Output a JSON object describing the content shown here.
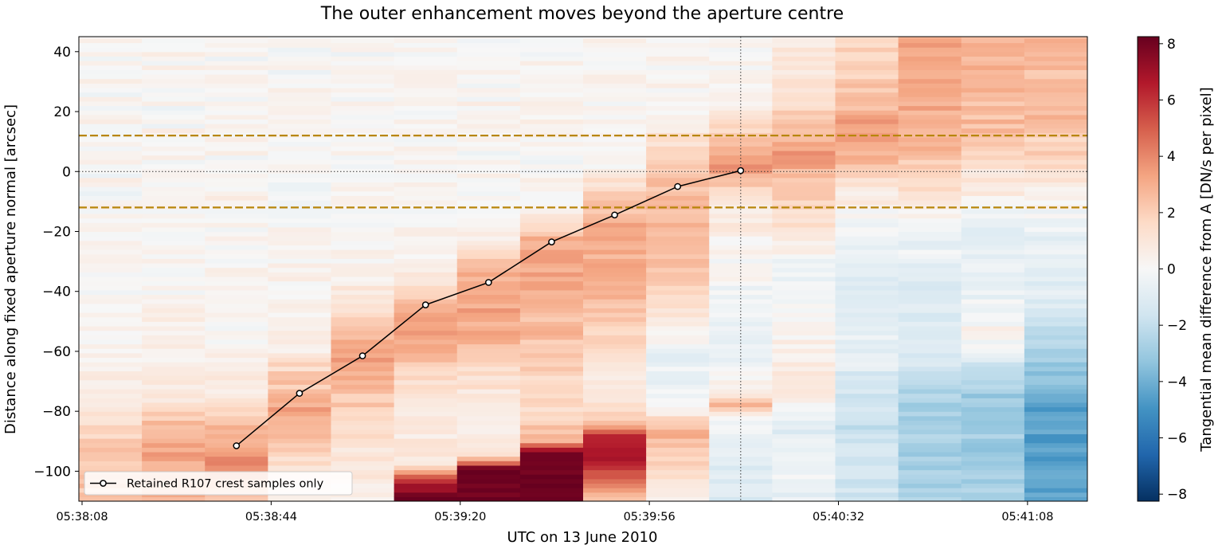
{
  "chart_data": {
    "type": "heatmap",
    "title": "The outer enhancement moves beyond the aperture centre",
    "xlabel": "UTC on 13 June 2010",
    "ylabel": "Distance along fixed aperture normal [arcsec]",
    "colorbar_label": "Tangential mean difference from A [DN/s per pixel]",
    "colormap": "RdBu_r",
    "clim": [
      -8.25,
      8.25
    ],
    "ylim": [
      -110,
      45
    ],
    "xticks": [
      "05:38:08",
      "05:38:44",
      "05:39:20",
      "05:39:56",
      "05:40:32",
      "05:41:08"
    ],
    "xtick_index": [
      0,
      3,
      6,
      9,
      12,
      15
    ],
    "yticks": [
      40,
      20,
      0,
      -20,
      -40,
      -60,
      -80,
      -100
    ],
    "cbar_ticks": [
      8,
      6,
      4,
      2,
      0,
      -2,
      -4,
      -6,
      -8
    ],
    "n_columns": 16,
    "columns": [
      {
        "time": "05:38:08",
        "profile": [
          [
            -110,
            2.2
          ],
          [
            -100,
            2.4
          ],
          [
            -90,
            2.0
          ],
          [
            -80,
            1.0
          ],
          [
            -60,
            0.3
          ],
          [
            -20,
            0.1
          ],
          [
            0,
            0.1
          ],
          [
            45,
            0.1
          ]
        ]
      },
      {
        "time": "05:38:20",
        "profile": [
          [
            -110,
            2.6
          ],
          [
            -95,
            3.2
          ],
          [
            -85,
            2.6
          ],
          [
            -75,
            0.8
          ],
          [
            -60,
            0.3
          ],
          [
            0,
            0.1
          ],
          [
            45,
            0.1
          ]
        ]
      },
      {
        "time": "05:38:32",
        "profile": [
          [
            -110,
            2.4
          ],
          [
            -95,
            4.0
          ],
          [
            -88,
            3.0
          ],
          [
            -78,
            1.4
          ],
          [
            -70,
            0.8
          ],
          [
            -60,
            0.3
          ],
          [
            0,
            0.1
          ],
          [
            45,
            0.1
          ]
        ]
      },
      {
        "time": "05:38:44",
        "profile": [
          [
            -110,
            0.5
          ],
          [
            -100,
            1.0
          ],
          [
            -90,
            2.4
          ],
          [
            -80,
            3.4
          ],
          [
            -70,
            2.2
          ],
          [
            -60,
            0.8
          ],
          [
            -50,
            0.3
          ],
          [
            0,
            0.1
          ],
          [
            45,
            0.1
          ]
        ]
      },
      {
        "time": "05:38:56",
        "profile": [
          [
            -110,
            0.5
          ],
          [
            -90,
            1.2
          ],
          [
            -75,
            2.4
          ],
          [
            -62,
            3.5
          ],
          [
            -50,
            2.2
          ],
          [
            -42,
            0.8
          ],
          [
            -30,
            0.2
          ],
          [
            0,
            0.1
          ],
          [
            45,
            0.1
          ]
        ]
      },
      {
        "time": "05:39:08",
        "profile": [
          [
            -110,
            8.0
          ],
          [
            -104,
            7.0
          ],
          [
            -98,
            1.0
          ],
          [
            -85,
            0.5
          ],
          [
            -70,
            1.4
          ],
          [
            -55,
            3.5
          ],
          [
            -45,
            3.0
          ],
          [
            -38,
            1.5
          ],
          [
            -30,
            0.3
          ],
          [
            0,
            0.1
          ],
          [
            45,
            0.1
          ]
        ]
      },
      {
        "time": "05:39:20",
        "profile": [
          [
            -110,
            8.3
          ],
          [
            -99,
            8.0
          ],
          [
            -95,
            1.0
          ],
          [
            -80,
            0.6
          ],
          [
            -70,
            1.4
          ],
          [
            -55,
            3.0
          ],
          [
            -40,
            3.2
          ],
          [
            -30,
            2.4
          ],
          [
            -25,
            0.6
          ],
          [
            0,
            0.1
          ],
          [
            45,
            0.1
          ]
        ]
      },
      {
        "time": "05:39:32",
        "profile": [
          [
            -110,
            8.3
          ],
          [
            -94,
            8.2
          ],
          [
            -90,
            3.0
          ],
          [
            -80,
            1.5
          ],
          [
            -60,
            2.2
          ],
          [
            -40,
            3.0
          ],
          [
            -25,
            3.4
          ],
          [
            -15,
            1.2
          ],
          [
            -10,
            0.3
          ],
          [
            0,
            0.1
          ],
          [
            45,
            0.1
          ]
        ]
      },
      {
        "time": "05:39:44",
        "profile": [
          [
            -110,
            2.0
          ],
          [
            -96,
            7.2
          ],
          [
            -88,
            6.0
          ],
          [
            -84,
            2.0
          ],
          [
            -70,
            0.5
          ],
          [
            -55,
            2.0
          ],
          [
            -35,
            2.8
          ],
          [
            -18,
            3.2
          ],
          [
            -4,
            1.4
          ],
          [
            2,
            0.4
          ],
          [
            45,
            0.1
          ]
        ]
      },
      {
        "time": "05:39:56",
        "profile": [
          [
            -110,
            0.4
          ],
          [
            -95,
            1.8
          ],
          [
            -86,
            3.0
          ],
          [
            -80,
            0.5
          ],
          [
            -70,
            -0.7
          ],
          [
            -60,
            -0.5
          ],
          [
            -50,
            1.0
          ],
          [
            -30,
            2.4
          ],
          [
            -10,
            2.8
          ],
          [
            5,
            2.0
          ],
          [
            15,
            0.6
          ],
          [
            25,
            0.1
          ],
          [
            45,
            0.1
          ]
        ]
      },
      {
        "time": "05:40:08",
        "profile": [
          [
            -110,
            -1.2
          ],
          [
            -92,
            -0.6
          ],
          [
            -83,
            -0.3
          ],
          [
            -78,
            2.5
          ],
          [
            -72,
            0.2
          ],
          [
            -60,
            -0.6
          ],
          [
            -45,
            -0.2
          ],
          [
            -28,
            0.2
          ],
          [
            -15,
            0.8
          ],
          [
            -5,
            1.6
          ],
          [
            0,
            3.8
          ],
          [
            8,
            3.0
          ],
          [
            15,
            1.4
          ],
          [
            25,
            0.3
          ],
          [
            45,
            0.2
          ]
        ]
      },
      {
        "time": "05:40:20",
        "profile": [
          [
            -110,
            -0.6
          ],
          [
            -95,
            -0.4
          ],
          [
            -85,
            -0.8
          ],
          [
            -78,
            -0.3
          ],
          [
            -72,
            1.2
          ],
          [
            -65,
            0.6
          ],
          [
            -55,
            0.5
          ],
          [
            -40,
            -0.4
          ],
          [
            -30,
            -0.2
          ],
          [
            -15,
            1.5
          ],
          [
            0,
            2.6
          ],
          [
            5,
            3.8
          ],
          [
            10,
            3.0
          ],
          [
            20,
            2.0
          ],
          [
            30,
            1.0
          ],
          [
            45,
            0.7
          ]
        ]
      },
      {
        "time": "05:40:32",
        "profile": [
          [
            -110,
            -1.6
          ],
          [
            -80,
            -1.8
          ],
          [
            -60,
            -0.6
          ],
          [
            -40,
            -1.0
          ],
          [
            -20,
            -0.4
          ],
          [
            -5,
            1.0
          ],
          [
            5,
            3.0
          ],
          [
            15,
            3.4
          ],
          [
            25,
            2.6
          ],
          [
            35,
            2.0
          ],
          [
            45,
            1.6
          ]
        ]
      },
      {
        "time": "05:40:44",
        "profile": [
          [
            -110,
            -2.6
          ],
          [
            -80,
            -2.8
          ],
          [
            -60,
            -1.2
          ],
          [
            -40,
            -1.2
          ],
          [
            -20,
            -0.2
          ],
          [
            -10,
            1.0
          ],
          [
            0,
            2.2
          ],
          [
            10,
            2.8
          ],
          [
            30,
            3.2
          ],
          [
            45,
            3.0
          ]
        ]
      },
      {
        "time": "05:40:56",
        "profile": [
          [
            -110,
            -2.8
          ],
          [
            -78,
            -3.2
          ],
          [
            -65,
            -1.6
          ],
          [
            -55,
            0.3
          ],
          [
            -40,
            -0.8
          ],
          [
            -20,
            -0.6
          ],
          [
            -10,
            0.3
          ],
          [
            0,
            1.2
          ],
          [
            15,
            2.4
          ],
          [
            30,
            2.8
          ],
          [
            45,
            3.0
          ]
        ]
      },
      {
        "time": "05:41:08",
        "profile": [
          [
            -110,
            -4.2
          ],
          [
            -80,
            -4.6
          ],
          [
            -60,
            -2.6
          ],
          [
            -40,
            -1.0
          ],
          [
            -20,
            -0.6
          ],
          [
            -8,
            0.4
          ],
          [
            0,
            1.4
          ],
          [
            20,
            2.6
          ],
          [
            45,
            2.8
          ]
        ]
      }
    ],
    "series": [
      {
        "name": "Retained R107 crest samples only",
        "x_index": [
          2.5,
          3.5,
          4.5,
          5.5,
          6.5,
          7.5,
          8.5,
          9.5,
          10.5
        ],
        "y": [
          -91.5,
          -74,
          -61.5,
          -44.5,
          -37,
          -23.5,
          -14.5,
          -5,
          0.3
        ],
        "color": "#000000",
        "marker": "circle-open"
      }
    ],
    "hlines": [
      {
        "y": 12,
        "color": "#b8860b",
        "style": "dashed"
      },
      {
        "y": -12,
        "color": "#b8860b",
        "style": "dashed"
      },
      {
        "y": 0,
        "color": "#333333",
        "style": "dotted"
      }
    ],
    "vlines": [
      {
        "x_index": 10.5,
        "color": "#333333",
        "style": "dotted"
      }
    ],
    "legend_placement": "lower-left",
    "grid": false
  }
}
